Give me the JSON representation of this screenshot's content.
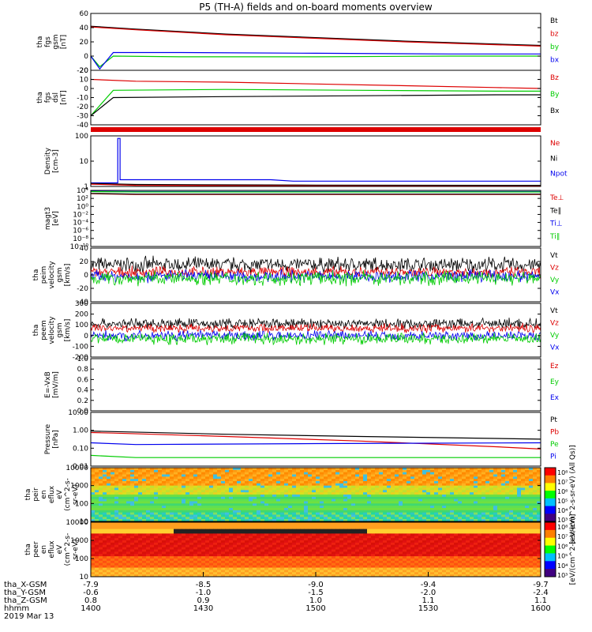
{
  "title": "P5 (TH-A) fields and on-board moments overview",
  "colors": {
    "black": "#000000",
    "red": "#dd0000",
    "green": "#00cc00",
    "blue": "#0000ee"
  },
  "chart_data": [
    {
      "type": "line",
      "id": "fgs-gsm",
      "ylabel": [
        "tha",
        "fgs",
        "gsm",
        "[nT]"
      ],
      "yticks": [
        "60",
        "40",
        "20",
        "0",
        "-20"
      ],
      "ylim": [
        -20,
        60
      ],
      "legend": [
        {
          "name": "Bt",
          "color": "#000000"
        },
        {
          "name": "bz",
          "color": "#dd0000"
        },
        {
          "name": "by",
          "color": "#00cc00"
        },
        {
          "name": "bx",
          "color": "#0000ee"
        }
      ],
      "series": [
        {
          "name": "Bt",
          "color": "#000000",
          "x": [
            0,
            0.1,
            0.3,
            0.5,
            0.7,
            0.9,
            1
          ],
          "y": [
            42,
            38,
            31,
            26,
            21,
            17,
            15
          ]
        },
        {
          "name": "bz",
          "color": "#dd0000",
          "x": [
            0,
            0.1,
            0.3,
            0.5,
            0.7,
            0.9,
            1
          ],
          "y": [
            41,
            37,
            30,
            25,
            20,
            16,
            14
          ]
        },
        {
          "name": "by",
          "color": "#00cc00",
          "x": [
            0,
            0.02,
            0.05,
            0.2,
            0.5,
            0.8,
            1
          ],
          "y": [
            0,
            -15,
            0,
            -1,
            -1,
            0,
            0
          ]
        },
        {
          "name": "bx",
          "color": "#0000ee",
          "x": [
            0,
            0.02,
            0.05,
            0.2,
            0.5,
            0.8,
            1
          ],
          "y": [
            0,
            -18,
            5,
            5,
            4,
            3,
            3
          ]
        }
      ]
    },
    {
      "type": "line",
      "id": "fgs-dsl",
      "ylabel": [
        "tha",
        "fgs",
        "dsl",
        "[nT]"
      ],
      "yticks": [
        "20",
        "10",
        "0",
        "-10",
        "-20",
        "-30",
        "-40"
      ],
      "ylim": [
        -40,
        20
      ],
      "legend": [
        {
          "name": "Bz",
          "color": "#dd0000"
        },
        {
          "name": "By",
          "color": "#00cc00"
        },
        {
          "name": "Bx",
          "color": "#000000"
        }
      ],
      "series": [
        {
          "name": "Bz",
          "color": "#dd0000",
          "x": [
            0,
            0.1,
            0.3,
            0.5,
            0.7,
            0.9,
            1
          ],
          "y": [
            10,
            8,
            7,
            5,
            3,
            1,
            0
          ]
        },
        {
          "name": "By",
          "color": "#00cc00",
          "x": [
            0,
            0.05,
            0.3,
            0.6,
            0.9,
            1
          ],
          "y": [
            -30,
            -2,
            -1,
            -2,
            -3,
            -3
          ]
        },
        {
          "name": "Bx",
          "color": "#000000",
          "x": [
            0,
            0.05,
            0.3,
            0.6,
            0.9,
            1
          ],
          "y": [
            -30,
            -10,
            -9,
            -8,
            -7,
            -7
          ]
        }
      ]
    },
    {
      "type": "line",
      "id": "density",
      "scale": "log",
      "ylabel": [
        "Density",
        "[cm-3]"
      ],
      "yticks": [
        "100",
        "10",
        "1"
      ],
      "ylim": [
        0.6,
        200
      ],
      "legend": [
        {
          "name": "Ne",
          "color": "#dd0000"
        },
        {
          "name": "Ni",
          "color": "#000000"
        },
        {
          "name": "Npot",
          "color": "#0000ee"
        }
      ],
      "series": [
        {
          "name": "Npot",
          "color": "#0000ee",
          "x": [
            0,
            0.06,
            0.06,
            0.065,
            0.065,
            0.4,
            0.45,
            1
          ],
          "y": [
            0.9,
            0.9,
            150,
            150,
            1.3,
            1.3,
            1.1,
            1.1
          ]
        },
        {
          "name": "Ni",
          "color": "#000000",
          "x": [
            0,
            0.1,
            0.5,
            1
          ],
          "y": [
            0.85,
            0.75,
            0.7,
            0.68
          ]
        },
        {
          "name": "Ne",
          "color": "#dd0000",
          "x": [
            0,
            0.1,
            0.5,
            1
          ],
          "y": [
            0.78,
            0.68,
            0.64,
            0.62
          ]
        }
      ]
    },
    {
      "type": "line",
      "id": "temperature",
      "scale": "log",
      "ylabel": [
        "magt3",
        "[eV]"
      ],
      "yticks": [
        "10⁴",
        "10²",
        "10⁰",
        "10⁻²",
        "10⁻⁴",
        "10⁻⁶",
        "10⁻⁸",
        "10⁻¹⁰"
      ],
      "ylim": [
        1e-10,
        10000.0
      ],
      "legend": [
        {
          "name": "Te⊥",
          "color": "#dd0000"
        },
        {
          "name": "Te∥",
          "color": "#000000"
        },
        {
          "name": "Ti⊥",
          "color": "#0000ee"
        },
        {
          "name": "Ti∥",
          "color": "#00cc00"
        }
      ],
      "series": [
        {
          "name": "Ti⊥",
          "color": "#0000ee",
          "x": [
            0,
            0.1,
            0.5,
            1
          ],
          "y": [
            6000,
            5000,
            5000,
            5000
          ]
        },
        {
          "name": "Ti∥",
          "color": "#00cc00",
          "x": [
            0,
            0.1,
            0.5,
            1
          ],
          "y": [
            5000,
            4000,
            4000,
            4000
          ]
        },
        {
          "name": "Te⊥",
          "color": "#dd0000",
          "x": [
            0,
            0.1,
            0.5,
            1
          ],
          "y": [
            1500,
            1000,
            1000,
            1000
          ]
        },
        {
          "name": "Te∥",
          "color": "#000000",
          "x": [
            0,
            0.1,
            0.5,
            1
          ],
          "y": [
            1800,
            1200,
            1200,
            1200
          ]
        }
      ]
    },
    {
      "type": "line",
      "id": "peim-velocity",
      "noisy": true,
      "ylabel": [
        "tha",
        "peim",
        "velocity",
        "gsm",
        "[km/s]"
      ],
      "yticks": [
        "40",
        "20",
        "0",
        "-20",
        "-40"
      ],
      "ylim": [
        -40,
        40
      ],
      "legend": [
        {
          "name": "Vt",
          "color": "#000000"
        },
        {
          "name": "Vz",
          "color": "#dd0000"
        },
        {
          "name": "Vy",
          "color": "#00cc00"
        },
        {
          "name": "Vx",
          "color": "#0000ee"
        }
      ],
      "series": [
        {
          "name": "Vt",
          "color": "#000000",
          "mean": 15,
          "spread": 10
        },
        {
          "name": "Vz",
          "color": "#dd0000",
          "mean": 4,
          "spread": 7
        },
        {
          "name": "Vx",
          "color": "#0000ee",
          "mean": -2,
          "spread": 8
        },
        {
          "name": "Vy",
          "color": "#00cc00",
          "mean": -5,
          "spread": 9
        }
      ]
    },
    {
      "type": "line",
      "id": "peem-velocity",
      "noisy": true,
      "ylabel": [
        "tha",
        "peem",
        "velocity",
        "gsm",
        "[km/s]"
      ],
      "yticks": [
        "300",
        "200",
        "100",
        "0",
        "-100",
        "-200"
      ],
      "ylim": [
        -200,
        300
      ],
      "legend": [
        {
          "name": "Vt",
          "color": "#000000"
        },
        {
          "name": "Vz",
          "color": "#dd0000"
        },
        {
          "name": "Vy",
          "color": "#00cc00"
        },
        {
          "name": "Vx",
          "color": "#0000ee"
        }
      ],
      "series": [
        {
          "name": "Vt",
          "color": "#000000",
          "mean": 110,
          "spread": 45
        },
        {
          "name": "Vz",
          "color": "#dd0000",
          "mean": 70,
          "spread": 35
        },
        {
          "name": "Vx",
          "color": "#0000ee",
          "mean": 0,
          "spread": 40
        },
        {
          "name": "Vy",
          "color": "#00cc00",
          "mean": -30,
          "spread": 45
        }
      ]
    },
    {
      "type": "line",
      "id": "efield",
      "ylabel": [
        "E=-VxB",
        "[mV/m]"
      ],
      "yticks": [
        "1.0",
        "0.8",
        "0.6",
        "0.4",
        "0.2",
        "0.0"
      ],
      "ylim": [
        0,
        1
      ],
      "legend": [
        {
          "name": "Ez",
          "color": "#dd0000"
        },
        {
          "name": "Ey",
          "color": "#00cc00"
        },
        {
          "name": "Ex",
          "color": "#0000ee"
        }
      ],
      "series": []
    },
    {
      "type": "line",
      "id": "pressure",
      "scale": "log",
      "ylabel": [
        "Pressure",
        "[nPa]"
      ],
      "yticks": [
        "10.00",
        "1.00",
        "0.10",
        "0.01"
      ],
      "ylim": [
        0.01,
        10
      ],
      "legend": [
        {
          "name": "Pt",
          "color": "#000000"
        },
        {
          "name": "Pb",
          "color": "#dd0000"
        },
        {
          "name": "Pe",
          "color": "#00cc00"
        },
        {
          "name": "Pi",
          "color": "#0000ee"
        }
      ],
      "series": [
        {
          "name": "Pt",
          "color": "#000000",
          "x": [
            0,
            0.05,
            0.3,
            0.6,
            0.9,
            1
          ],
          "y": [
            0.9,
            0.85,
            0.6,
            0.45,
            0.35,
            0.32
          ]
        },
        {
          "name": "Pb",
          "color": "#dd0000",
          "x": [
            0,
            0.05,
            0.3,
            0.6,
            0.9,
            1
          ],
          "y": [
            0.75,
            0.7,
            0.45,
            0.25,
            0.12,
            0.09
          ]
        },
        {
          "name": "Pi",
          "color": "#0000ee",
          "x": [
            0,
            0.1,
            0.5,
            1
          ],
          "y": [
            0.2,
            0.16,
            0.18,
            0.2
          ]
        },
        {
          "name": "Pe",
          "color": "#00cc00",
          "x": [
            0,
            0.1,
            0.5,
            1
          ],
          "y": [
            0.04,
            0.03,
            0.03,
            0.03
          ]
        }
      ]
    },
    {
      "type": "heatmap",
      "id": "peir-en-eflux",
      "ylabel": [
        "tha",
        "peir",
        "en",
        "eflux",
        "eV",
        "(cm^2-s-",
        "sr-eV)"
      ],
      "yticks": [
        "10000",
        "1000",
        "100",
        "10"
      ],
      "ylim": [
        5,
        30000
      ],
      "colorbar_ticks": [
        "10⁸",
        "10⁷",
        "10⁶",
        "10⁵",
        "10⁴",
        "10³"
      ],
      "colorbar_label": "[eV/(cm^2-s-sr-eV) (All Qs)]"
    },
    {
      "type": "heatmap",
      "id": "peer-en-eflux",
      "ylabel": [
        "tha",
        "peer",
        "en",
        "eflux",
        "eV",
        "(cm^2-s-",
        "sr-eV)"
      ],
      "yticks": [
        "10000",
        "1000",
        "100",
        "10"
      ],
      "ylim": [
        5,
        30000
      ],
      "colorbar_ticks": [
        "10⁸",
        "10⁷",
        "10⁶",
        "10⁵",
        "10⁴",
        "10³"
      ],
      "colorbar_label": "[eV/(cm^2-s-sr-eV)]"
    }
  ],
  "x_axis": {
    "row_labels": [
      "tha_X-GSM",
      "tha_Y-GSM",
      "tha_Z-GSM",
      "hhmm",
      "2019 Mar 13"
    ],
    "columns": [
      [
        "-7.9",
        "-0.6",
        "0.8",
        "1400"
      ],
      [
        "-8.5",
        "-1.0",
        "0.9",
        "1430"
      ],
      [
        "-9.0",
        "-1.5",
        "1.0",
        "1500"
      ],
      [
        "-9.4",
        "-2.0",
        "1.1",
        "1530"
      ],
      [
        "-9.7",
        "-2.4",
        "1.1",
        "1600"
      ]
    ]
  }
}
